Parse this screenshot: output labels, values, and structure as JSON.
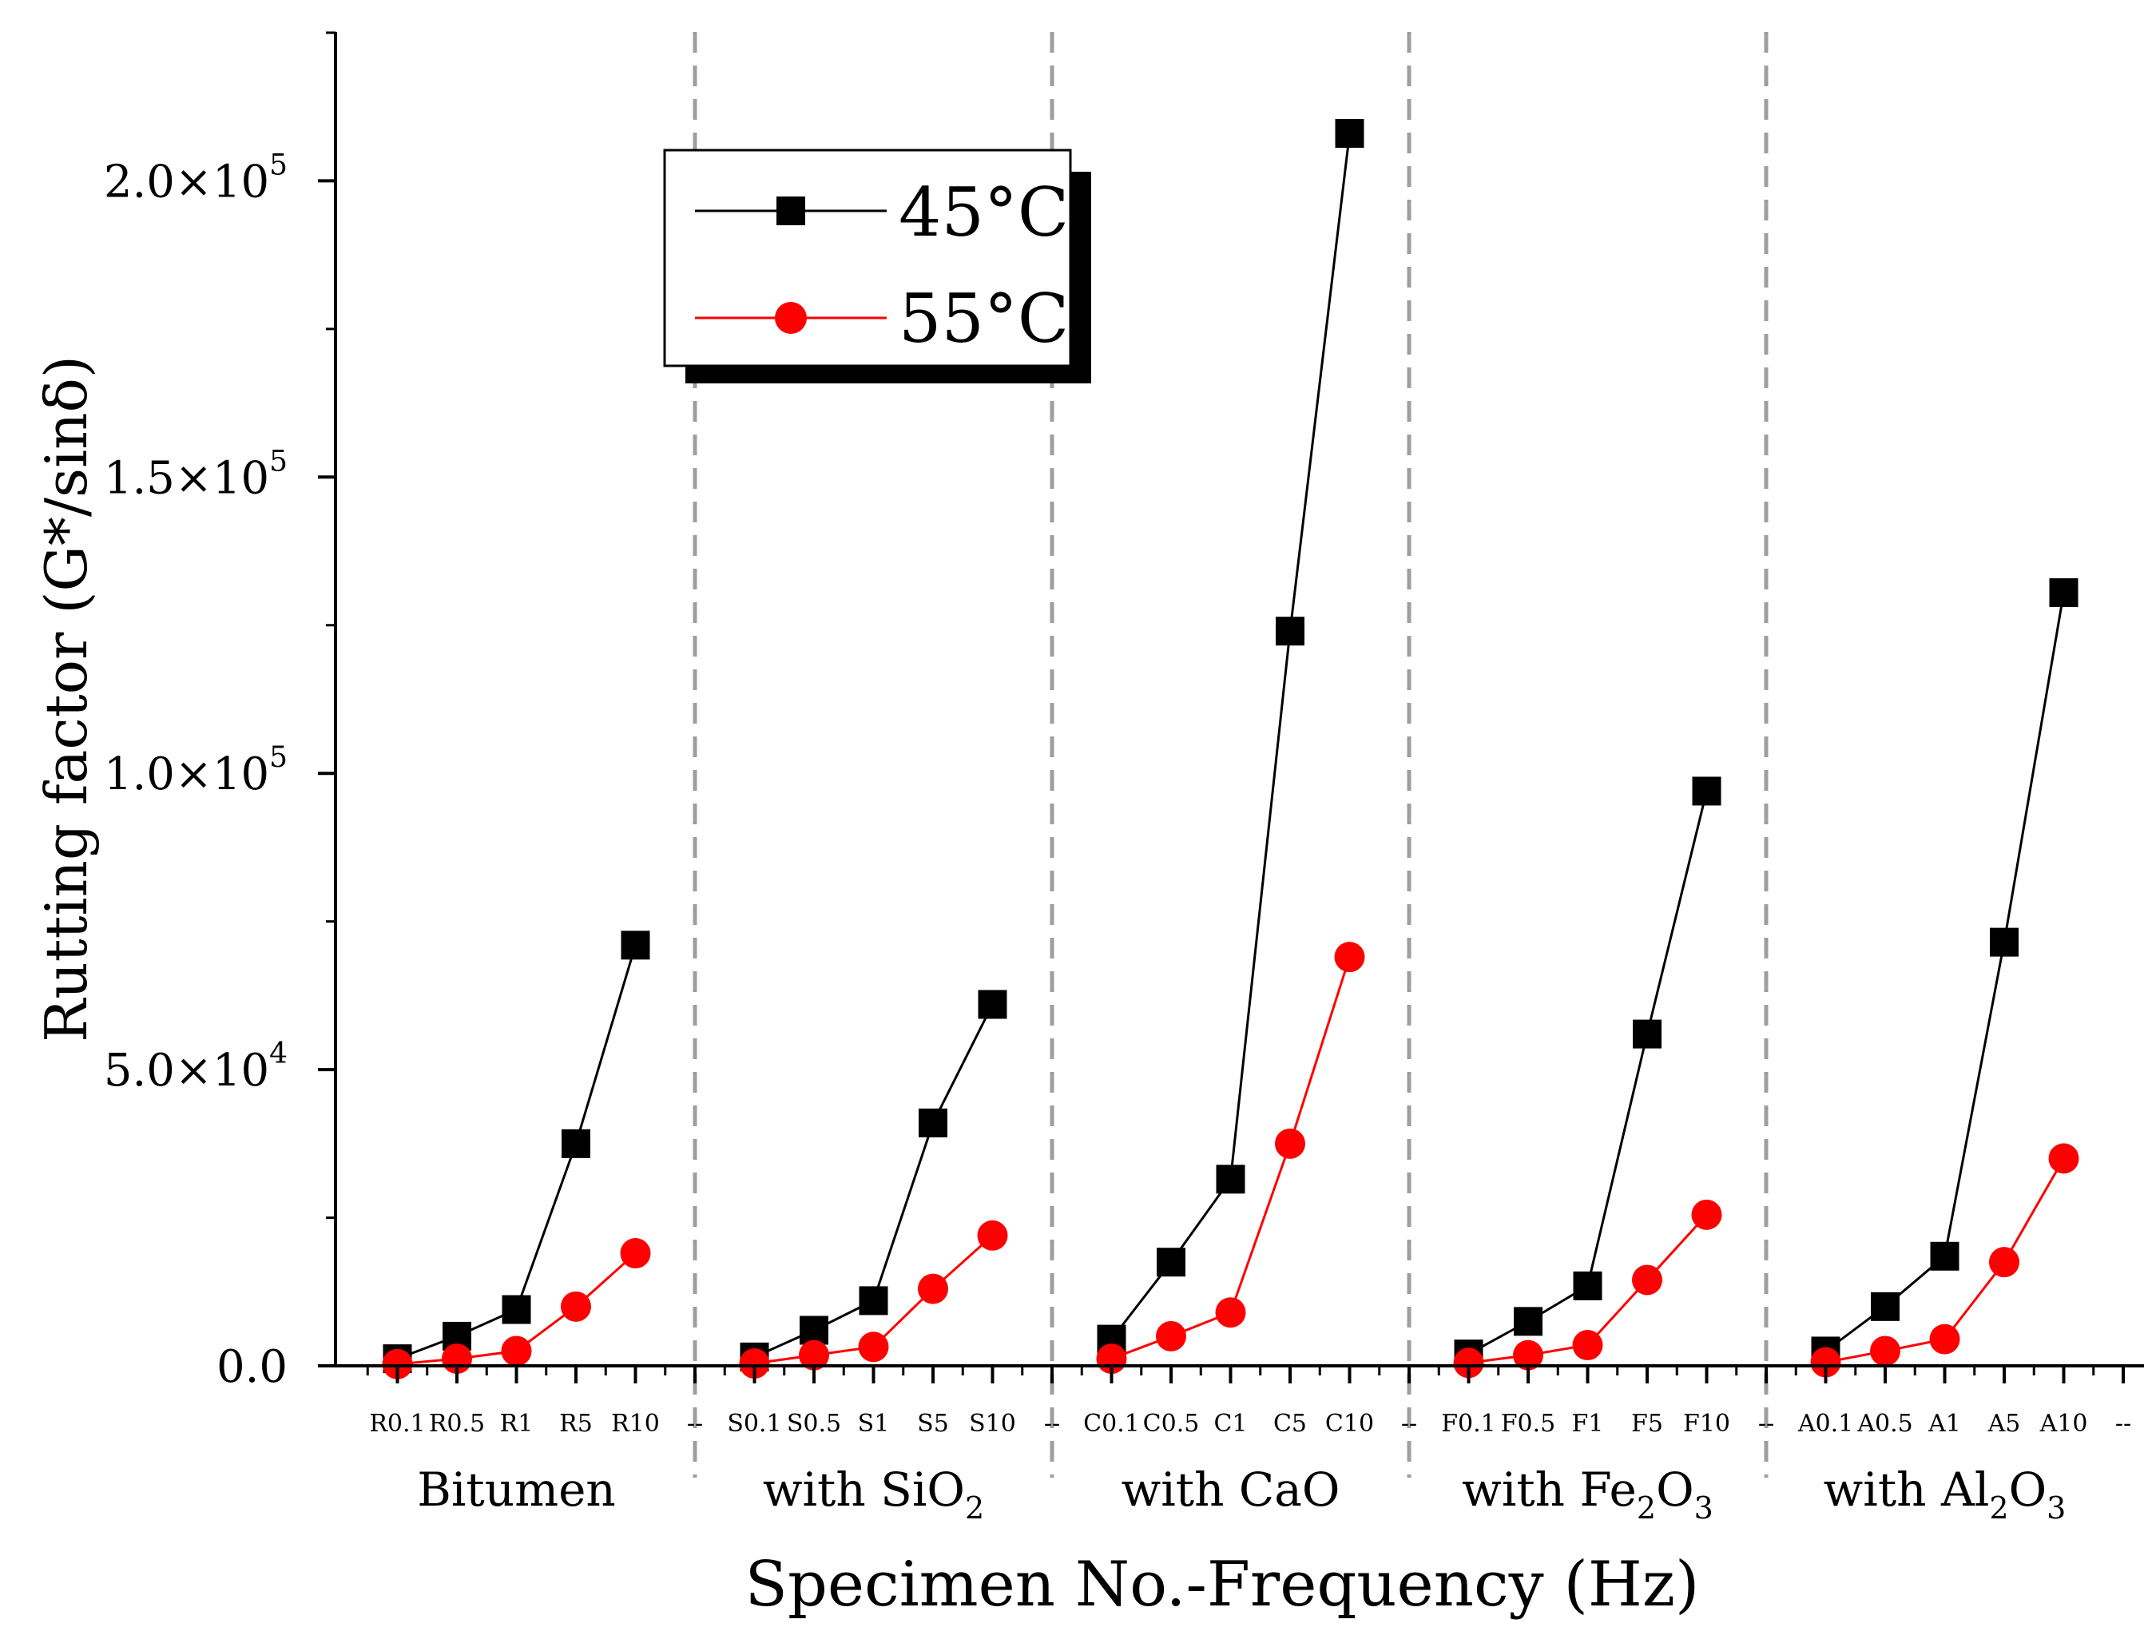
{
  "chart_data": {
    "type": "line",
    "title": "",
    "xlabel": "Specimen No.-Frequency (Hz)",
    "ylabel": "Rutting factor (G*/sinδ)",
    "ylim": [
      0,
      225000
    ],
    "categories": [
      "R0.1",
      "R0.5",
      "R1",
      "R5",
      "R10",
      "--",
      "S0.1",
      "S0.5",
      "S1",
      "S5",
      "S10",
      "--",
      "C0.1",
      "C0.5",
      "C1",
      "C5",
      "C10",
      "--",
      "F0.1",
      "F0.5",
      "F1",
      "F5",
      "F10",
      "--",
      "A0.1",
      "A0.5",
      "A1",
      "A5",
      "A10",
      "--"
    ],
    "y_ticks": [
      {
        "value": 0,
        "mantissa": "0.0",
        "exponent": ""
      },
      {
        "value": 50000,
        "mantissa": "5.0×10",
        "exponent": "4"
      },
      {
        "value": 100000,
        "mantissa": "1.0×10",
        "exponent": "5"
      },
      {
        "value": 150000,
        "mantissa": "1.5×10",
        "exponent": "5"
      },
      {
        "value": 200000,
        "mantissa": "2.0×10",
        "exponent": "5"
      }
    ],
    "groups": [
      {
        "label": "Bitumen",
        "base": "",
        "sub1": "",
        "mid": "",
        "sub2": ""
      },
      {
        "label": "with SiO",
        "base": "with SiO",
        "sub1": "2",
        "mid": "",
        "sub2": ""
      },
      {
        "label": "with CaO",
        "base": "with CaO",
        "sub1": "",
        "mid": "",
        "sub2": ""
      },
      {
        "label": "with Fe2O3",
        "base": "with Fe",
        "sub1": "2",
        "mid": "O",
        "sub2": "3"
      },
      {
        "label": "with Al2O3",
        "base": "with Al",
        "sub1": "2",
        "mid": "O",
        "sub2": "3"
      }
    ],
    "series": [
      {
        "name": "45°C",
        "color": "#000000",
        "marker": "square",
        "segments": [
          [
            1200,
            5000,
            9500,
            37500,
            71000
          ],
          [
            1500,
            6000,
            11000,
            41000,
            61000
          ],
          [
            4500,
            17500,
            31500,
            124000,
            208000
          ],
          [
            2000,
            7500,
            13500,
            56000,
            97000
          ],
          [
            2500,
            10000,
            18500,
            71500,
            130500
          ]
        ]
      },
      {
        "name": "55°C",
        "color": "#ff0000",
        "marker": "circle",
        "segments": [
          [
            300,
            1200,
            2500,
            10000,
            19000
          ],
          [
            400,
            1800,
            3200,
            13000,
            22000
          ],
          [
            1200,
            5000,
            9000,
            37500,
            69000
          ],
          [
            500,
            1800,
            3500,
            14500,
            25500
          ],
          [
            600,
            2500,
            4500,
            17500,
            35000
          ]
        ]
      }
    ],
    "legend_position": "top-left"
  }
}
